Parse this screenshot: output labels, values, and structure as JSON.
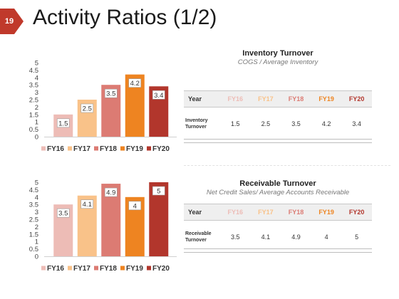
{
  "slide": {
    "number": "19",
    "title": "Activity Ratios (1/2)",
    "badge_color": "#c0392b"
  },
  "colors": {
    "FY16": "#edbcb6",
    "FY17": "#f9c289",
    "FY18": "#dc7b73",
    "FY19": "#ee8421",
    "FY20": "#b2362c"
  },
  "chart_data": [
    {
      "type": "bar",
      "categories": [
        "FY16",
        "FY17",
        "FY18",
        "FY19",
        "FY20"
      ],
      "values": [
        1.5,
        2.5,
        3.5,
        4.2,
        3.4
      ],
      "value_labels": [
        "1.5",
        "2.5",
        "3.5",
        "4.2",
        "3.4"
      ],
      "y_ticks": [
        "0",
        "0.5",
        "1",
        "1.5",
        "2",
        "2.5",
        "3",
        "3.5",
        "4",
        "4.5",
        "5"
      ],
      "ylim": [
        0,
        5
      ],
      "grid": false,
      "legend": "bottom",
      "legend_entries": [
        "FY16",
        "FY17",
        "FY18",
        "FY19",
        "FY20"
      ]
    },
    {
      "type": "bar",
      "categories": [
        "FY16",
        "FY17",
        "FY18",
        "FY19",
        "FY20"
      ],
      "values": [
        3.5,
        4.1,
        4.9,
        4,
        5
      ],
      "value_labels": [
        "3.5",
        "4.1",
        "4.9",
        "4",
        "5"
      ],
      "y_ticks": [
        "0",
        "0.5",
        "1",
        "1.5",
        "2",
        "2.5",
        "3",
        "3.5",
        "4",
        "4.5",
        "5"
      ],
      "ylim": [
        0,
        5
      ],
      "grid": false,
      "legend": "bottom",
      "legend_entries": [
        "FY16",
        "FY17",
        "FY18",
        "FY19",
        "FY20"
      ]
    }
  ],
  "tables": [
    {
      "title": "Inventory Turnover",
      "subtitle": "COGS / Average Inventory",
      "header_first": "Year",
      "columns": [
        "FY16",
        "FY17",
        "FY18",
        "FY19",
        "FY20"
      ],
      "row_label_line1": "Inventory",
      "row_label_line2": "Turnover",
      "values": [
        "1.5",
        "2.5",
        "3.5",
        "4.2",
        "3.4"
      ]
    },
    {
      "title": "Receivable Turnover",
      "subtitle": "Net Credit Sales/ Average Accounts Receivable",
      "header_first": "Year",
      "columns": [
        "FY16",
        "FY17",
        "FY18",
        "FY19",
        "FY20"
      ],
      "row_label_line1": "Receivable",
      "row_label_line2": "Turnover",
      "values": [
        "3.5",
        "4.1",
        "4.9",
        "4",
        "5"
      ]
    }
  ]
}
